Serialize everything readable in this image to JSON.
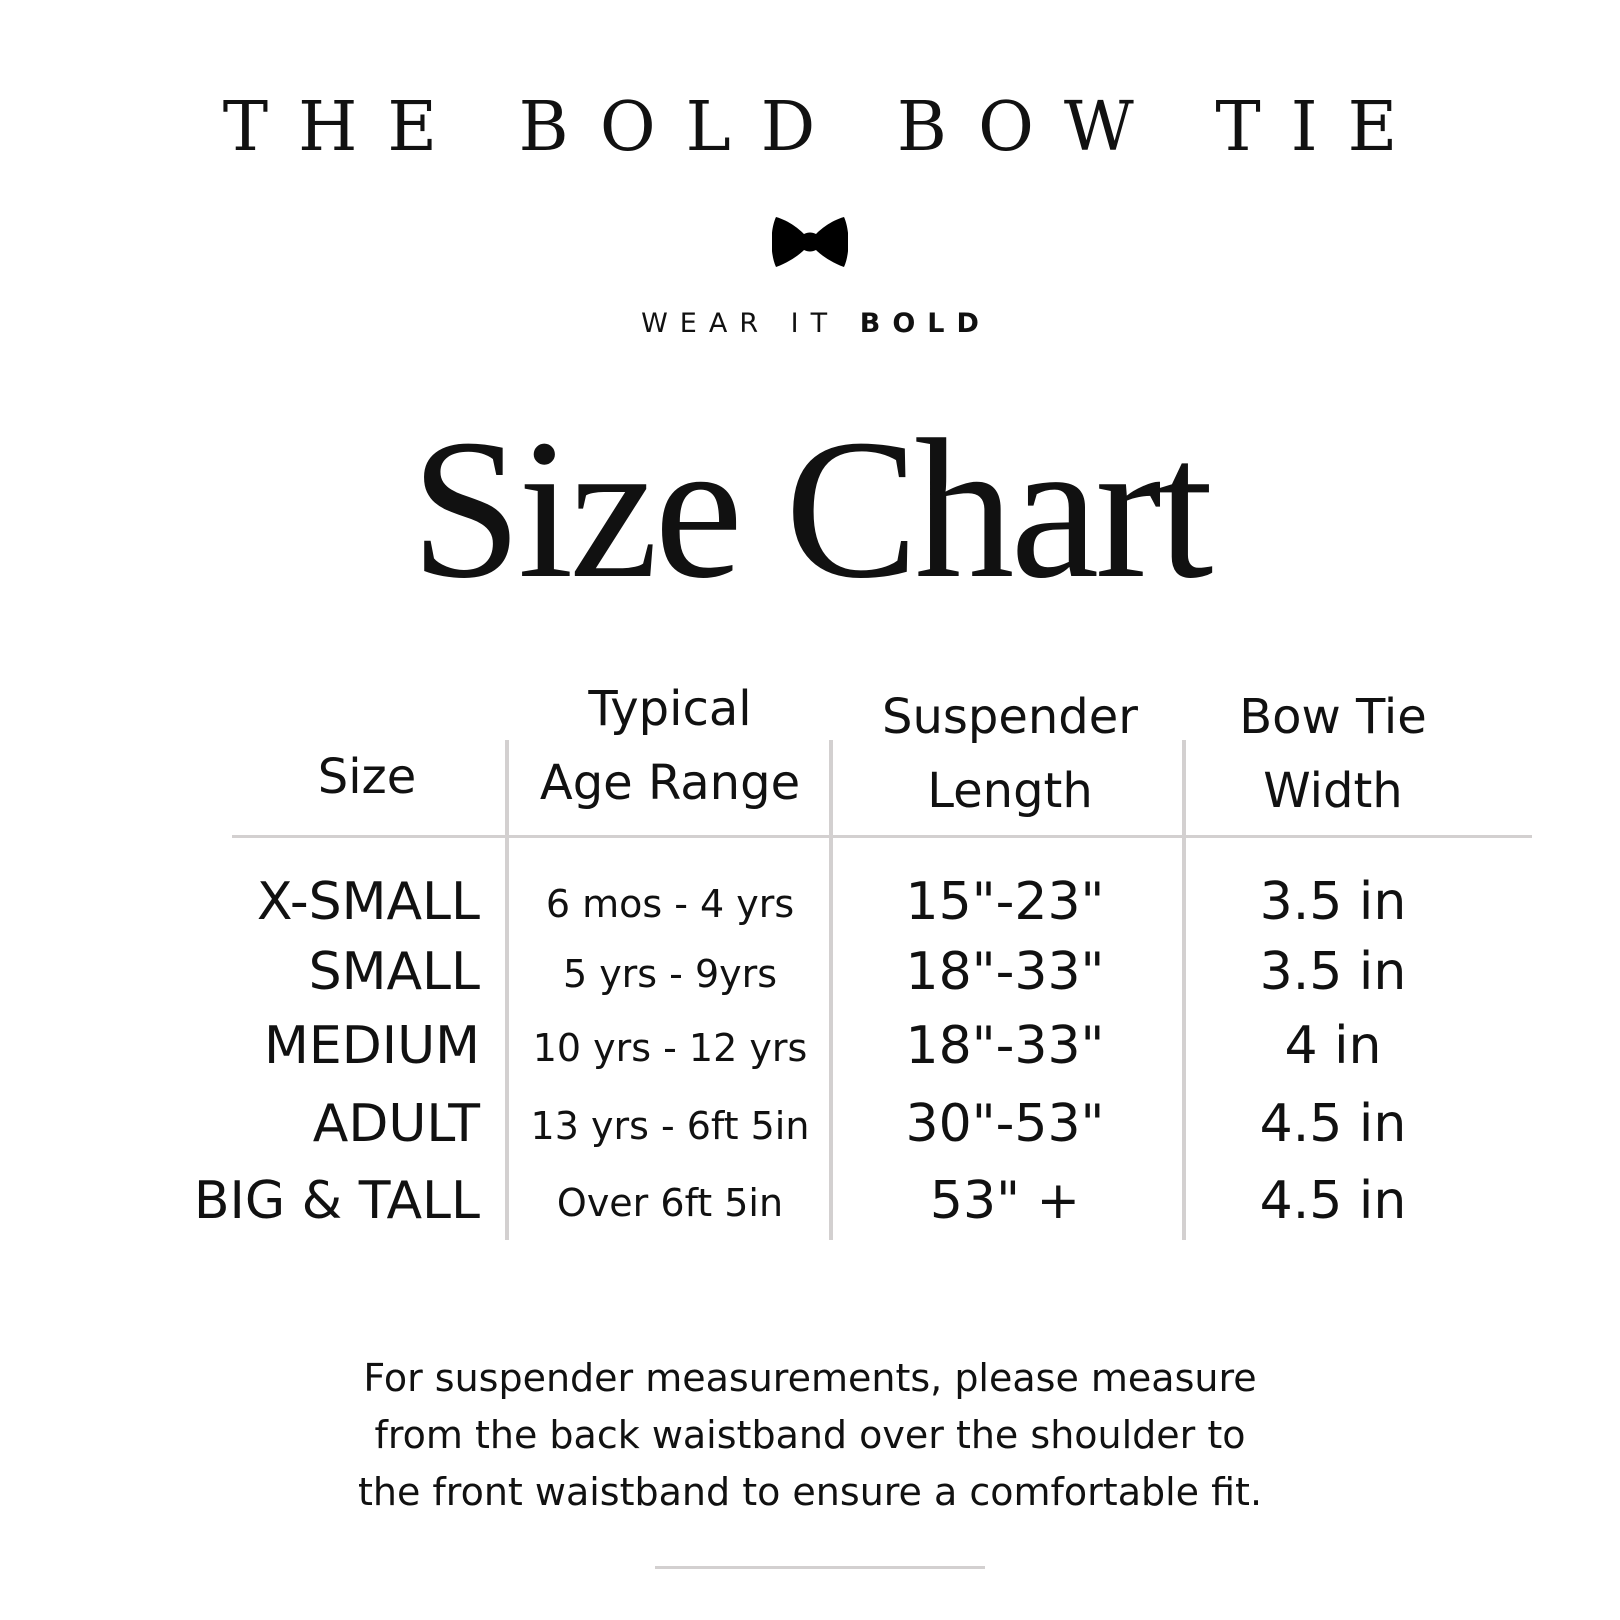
{
  "brand": "THE BOLD BOW TIE",
  "tagline": {
    "regular": "WEAR IT",
    "bold": "BOLD"
  },
  "logo_icon": "bow-tie-icon",
  "title": "Size Chart",
  "table": {
    "headers": [
      [
        "Size"
      ],
      [
        "Typical",
        "Age Range"
      ],
      [
        "Suspender",
        "Length"
      ],
      [
        "Bow Tie",
        "Width"
      ]
    ],
    "rows": [
      {
        "size": "X-SMALL",
        "age": "6 mos - 4 yrs",
        "suspender": "15\"-23\"",
        "width": "3.5 in"
      },
      {
        "size": "SMALL",
        "age": "5 yrs - 9yrs",
        "suspender": "18\"-33\"",
        "width": "3.5 in"
      },
      {
        "size": "MEDIUM",
        "age": "10 yrs - 12 yrs",
        "suspender": "18\"-33\"",
        "width": "4 in"
      },
      {
        "size": "ADULT",
        "age": "13 yrs - 6ft 5in",
        "suspender": "30\"-53\"",
        "width": "4.5 in"
      },
      {
        "size": "BIG & TALL",
        "age": "Over 6ft 5in",
        "suspender": "53\" +",
        "width": "4.5 in"
      }
    ]
  },
  "note": [
    "For suspender measurements, please measure",
    "from the back waistband over the shoulder to",
    "the front waistband to ensure a comfortable fit."
  ]
}
